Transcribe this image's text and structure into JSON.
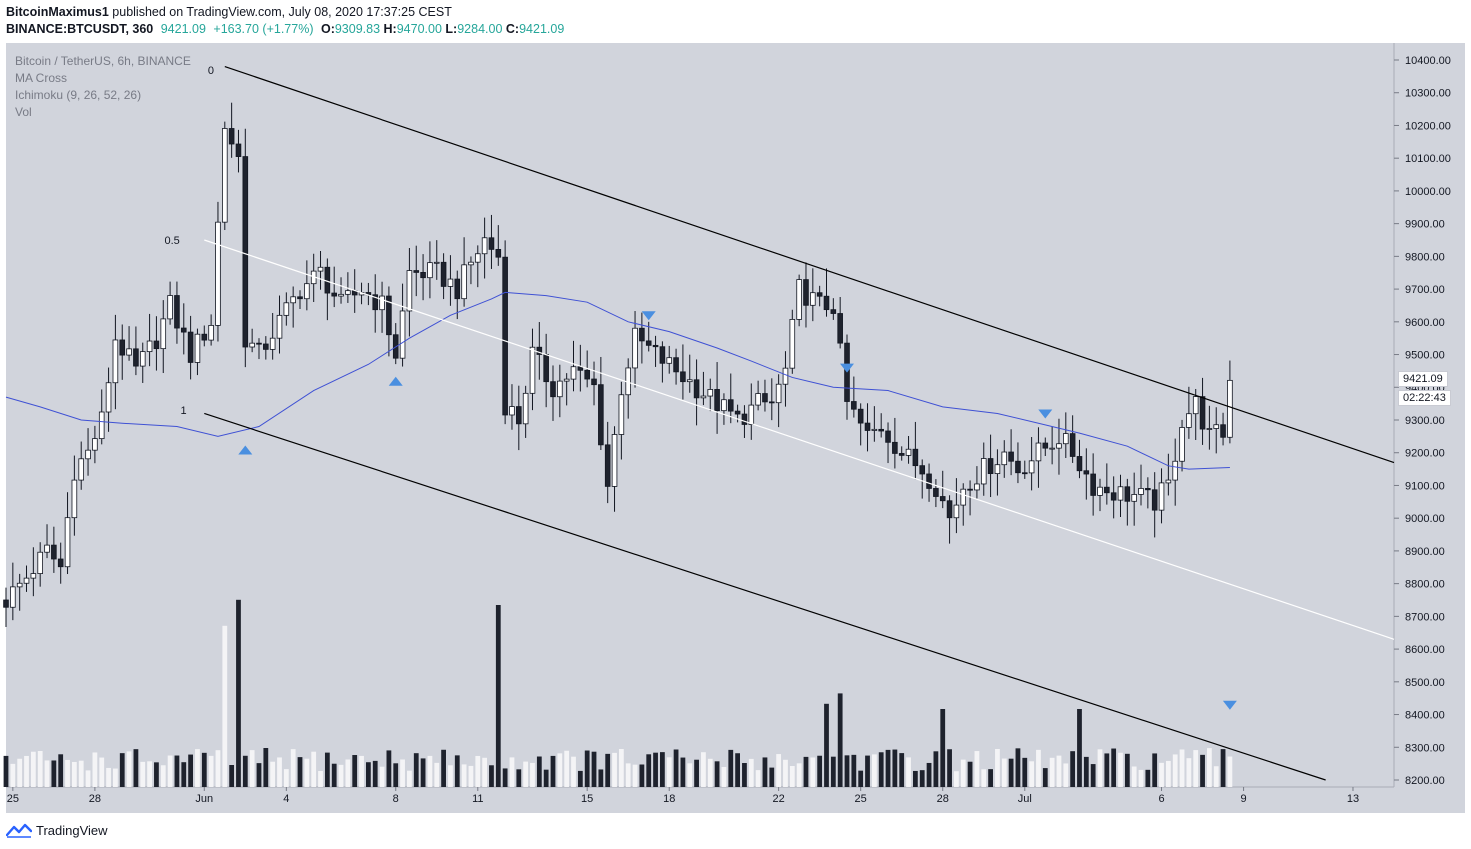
{
  "header": {
    "author": "BitcoinMaximus1",
    "published": " published on TradingView.com, July 08, 2020 17:37:25 CEST",
    "symbol": "BINANCE:BTCUSDT, 360",
    "last": "9421.09",
    "change": "+163.70 (+1.77%)",
    "o_label": "O:",
    "o": "9309.83",
    "h_label": "H:",
    "h": "9470.00",
    "l_label": "L:",
    "l": "9284.00",
    "c_label": "C:",
    "c": "9421.09"
  },
  "legend": {
    "pair": "Bitcoin / TetherUS, 6h, BINANCE",
    "ma": "MA Cross",
    "ichimoku": "Ichimoku (9, 26, 52, 26)",
    "vol": "Vol"
  },
  "price_tags": {
    "last": "9421.09",
    "countdown": "02:22:43"
  },
  "footer": {
    "brand": "TradingView"
  },
  "colors": {
    "background": "#d1d4dc",
    "up": "#ffffff",
    "down": "#1e222d",
    "ma": "#3f51d4",
    "channel": "#000000",
    "midline": "#ffffff",
    "marker": "#4a8fe0"
  },
  "chart_data": {
    "type": "candlestick",
    "ylim": [
      8200,
      10450
    ],
    "yticks": [
      8200,
      8300,
      8400,
      8500,
      8600,
      8700,
      8800,
      8900,
      9000,
      9100,
      9200,
      9300,
      9400,
      9500,
      9600,
      9700,
      9800,
      9900,
      10000,
      10100,
      10200,
      10300,
      10400
    ],
    "ytick_labels": [
      "8200.00",
      "8300.00",
      "8400.00",
      "8500.00",
      "8600.00",
      "8700.00",
      "8800.00",
      "8900.00",
      "9000.00",
      "9100.00",
      "9200.00",
      "9300.00",
      "9400.00",
      "9500.00",
      "9600.00",
      "9700.00",
      "9800.00",
      "9900.00",
      "10000.00",
      "10100.00",
      "10200.00",
      "10300.00",
      "10400.00"
    ],
    "xlim": [
      "2020-05-24T18:00",
      "2020-07-14T12:00"
    ],
    "xticks": [
      {
        "label": "25",
        "date": "2020-05-25T00:00"
      },
      {
        "label": "28",
        "date": "2020-05-28T00:00"
      },
      {
        "label": "Jun",
        "date": "2020-06-01T00:00"
      },
      {
        "label": "4",
        "date": "2020-06-04T00:00"
      },
      {
        "label": "8",
        "date": "2020-06-08T00:00"
      },
      {
        "label": "11",
        "date": "2020-06-11T00:00"
      },
      {
        "label": "15",
        "date": "2020-06-15T00:00"
      },
      {
        "label": "18",
        "date": "2020-06-18T00:00"
      },
      {
        "label": "22",
        "date": "2020-06-22T00:00"
      },
      {
        "label": "25",
        "date": "2020-06-25T00:00"
      },
      {
        "label": "28",
        "date": "2020-06-28T00:00"
      },
      {
        "label": "Jul",
        "date": "2020-07-01T00:00"
      },
      {
        "label": "6",
        "date": "2020-07-06T00:00"
      },
      {
        "label": "9",
        "date": "2020-07-09T00:00"
      },
      {
        "label": "13",
        "date": "2020-07-13T00:00"
      }
    ],
    "close_anchors": [
      [
        "2020-05-24T18:00",
        8750
      ],
      [
        "2020-05-25T12:00",
        8820
      ],
      [
        "2020-05-26T06:00",
        8900
      ],
      [
        "2020-05-26T18:00",
        8850
      ],
      [
        "2020-05-27T06:00",
        9150
      ],
      [
        "2020-05-27T18:00",
        9200
      ],
      [
        "2020-05-28T06:00",
        9300
      ],
      [
        "2020-05-28T18:00",
        9550
      ],
      [
        "2020-05-29T12:00",
        9450
      ],
      [
        "2020-05-30T06:00",
        9550
      ],
      [
        "2020-05-30T18:00",
        9650
      ],
      [
        "2020-05-31T12:00",
        9500
      ],
      [
        "2020-06-01T06:00",
        9600
      ],
      [
        "2020-06-01T18:00",
        10200
      ],
      [
        "2020-06-02T06:00",
        10100
      ],
      [
        "2020-06-02T12:00",
        9550
      ],
      [
        "2020-06-03T00:00",
        9500
      ],
      [
        "2020-06-03T18:00",
        9600
      ],
      [
        "2020-06-04T12:00",
        9700
      ],
      [
        "2020-06-05T06:00",
        9750
      ],
      [
        "2020-06-06T00:00",
        9650
      ],
      [
        "2020-06-06T18:00",
        9700
      ],
      [
        "2020-06-07T12:00",
        9650
      ],
      [
        "2020-06-08T00:00",
        9500
      ],
      [
        "2020-06-08T12:00",
        9750
      ],
      [
        "2020-06-09T12:00",
        9750
      ],
      [
        "2020-06-10T06:00",
        9700
      ],
      [
        "2020-06-10T18:00",
        9780
      ],
      [
        "2020-06-11T06:00",
        9850
      ],
      [
        "2020-06-11T18:00",
        9800
      ],
      [
        "2020-06-12T00:00",
        9350
      ],
      [
        "2020-06-12T12:00",
        9300
      ],
      [
        "2020-06-13T00:00",
        9500
      ],
      [
        "2020-06-13T18:00",
        9400
      ],
      [
        "2020-06-14T12:00",
        9450
      ],
      [
        "2020-06-15T06:00",
        9400
      ],
      [
        "2020-06-15T18:00",
        9100
      ],
      [
        "2020-06-16T06:00",
        9400
      ],
      [
        "2020-06-16T18:00",
        9550
      ],
      [
        "2020-06-17T12:00",
        9500
      ],
      [
        "2020-06-18T06:00",
        9450
      ],
      [
        "2020-06-19T00:00",
        9400
      ],
      [
        "2020-06-19T18:00",
        9350
      ],
      [
        "2020-06-20T12:00",
        9300
      ],
      [
        "2020-06-21T06:00",
        9350
      ],
      [
        "2020-06-21T18:00",
        9350
      ],
      [
        "2020-06-22T06:00",
        9450
      ],
      [
        "2020-06-22T18:00",
        9700
      ],
      [
        "2020-06-23T12:00",
        9650
      ],
      [
        "2020-06-24T00:00",
        9650
      ],
      [
        "2020-06-24T12:00",
        9350
      ],
      [
        "2020-06-25T06:00",
        9250
      ],
      [
        "2020-06-25T18:00",
        9280
      ],
      [
        "2020-06-26T12:00",
        9200
      ],
      [
        "2020-06-27T06:00",
        9150
      ],
      [
        "2020-06-27T18:00",
        9100
      ],
      [
        "2020-06-28T06:00",
        9000
      ],
      [
        "2020-06-28T18:00",
        9100
      ],
      [
        "2020-06-29T12:00",
        9150
      ],
      [
        "2020-06-30T06:00",
        9200
      ],
      [
        "2020-06-30T18:00",
        9150
      ],
      [
        "2020-07-01T12:00",
        9200
      ],
      [
        "2020-07-02T06:00",
        9250
      ],
      [
        "2020-07-02T18:00",
        9200
      ],
      [
        "2020-07-03T12:00",
        9100
      ],
      [
        "2020-07-04T06:00",
        9080
      ],
      [
        "2020-07-05T00:00",
        9070
      ],
      [
        "2020-07-05T18:00",
        9050
      ],
      [
        "2020-07-06T06:00",
        9100
      ],
      [
        "2020-07-06T18:00",
        9300
      ],
      [
        "2020-07-07T06:00",
        9350
      ],
      [
        "2020-07-07T18:00",
        9250
      ],
      [
        "2020-07-08T06:00",
        9260
      ],
      [
        "2020-07-08T12:00",
        9421.09
      ]
    ],
    "ma": [
      [
        "2020-05-24T18:00",
        9370
      ],
      [
        "2020-05-26T00:00",
        9340
      ],
      [
        "2020-05-27T12:00",
        9300
      ],
      [
        "2020-05-29T00:00",
        9290
      ],
      [
        "2020-05-31T00:00",
        9280
      ],
      [
        "2020-06-01T12:00",
        9250
      ],
      [
        "2020-06-03T00:00",
        9280
      ],
      [
        "2020-06-05T00:00",
        9390
      ],
      [
        "2020-06-07T00:00",
        9470
      ],
      [
        "2020-06-08T12:00",
        9550
      ],
      [
        "2020-06-10T00:00",
        9620
      ],
      [
        "2020-06-11T12:00",
        9670
      ],
      [
        "2020-06-12T00:00",
        9690
      ],
      [
        "2020-06-13T12:00",
        9680
      ],
      [
        "2020-06-15T00:00",
        9660
      ],
      [
        "2020-06-16T12:00",
        9600
      ],
      [
        "2020-06-18T00:00",
        9570
      ],
      [
        "2020-06-19T18:00",
        9520
      ],
      [
        "2020-06-21T00:00",
        9480
      ],
      [
        "2020-06-22T12:00",
        9430
      ],
      [
        "2020-06-24T00:00",
        9400
      ],
      [
        "2020-06-26T00:00",
        9390
      ],
      [
        "2020-06-28T00:00",
        9340
      ],
      [
        "2020-06-30T00:00",
        9320
      ],
      [
        "2020-07-01T12:00",
        9290
      ],
      [
        "2020-07-03T00:00",
        9260
      ],
      [
        "2020-07-04T18:00",
        9220
      ],
      [
        "2020-07-06T06:00",
        9160
      ],
      [
        "2020-07-07T00:00",
        9150
      ],
      [
        "2020-07-08T12:00",
        9155
      ]
    ],
    "channel_upper": [
      [
        "2020-06-01T18:00",
        10380
      ],
      [
        "2020-07-14T12:00",
        9170
      ]
    ],
    "channel_mid": [
      [
        "2020-06-01T00:00",
        9850
      ],
      [
        "2020-07-14T12:00",
        8630
      ]
    ],
    "channel_lower": [
      [
        "2020-06-01T00:00",
        9320
      ],
      [
        "2020-07-12T00:00",
        8200
      ]
    ],
    "fib_labels": [
      {
        "label": "0",
        "date": "2020-06-01T12:00",
        "price": 10370
      },
      {
        "label": "0.5",
        "date": "2020-05-31T06:00",
        "price": 9850
      },
      {
        "label": "1",
        "date": "2020-05-31T12:00",
        "price": 9330
      }
    ],
    "markers": [
      {
        "type": "up",
        "date": "2020-06-02T12:00",
        "price": 9210
      },
      {
        "type": "up",
        "date": "2020-06-08T00:00",
        "price": 9420
      },
      {
        "type": "down",
        "date": "2020-06-17T06:00",
        "price": 9620
      },
      {
        "type": "down",
        "date": "2020-06-24T12:00",
        "price": 9460
      },
      {
        "type": "down",
        "date": "2020-07-01T18:00",
        "price": 9320
      },
      {
        "type": "down",
        "date": "2020-07-08T12:00",
        "price": 8430
      }
    ],
    "volume_spikes": [
      {
        "date": "2020-06-01T18:00",
        "rel": 0.62
      },
      {
        "date": "2020-06-02T06:00",
        "rel": 0.72
      },
      {
        "date": "2020-06-11T18:00",
        "rel": 0.7
      },
      {
        "date": "2020-06-23T18:00",
        "rel": 0.32
      },
      {
        "date": "2020-06-24T06:00",
        "rel": 0.36
      },
      {
        "date": "2020-07-03T00:00",
        "rel": 0.3
      },
      {
        "date": "2020-06-28T00:00",
        "rel": 0.3
      }
    ]
  }
}
